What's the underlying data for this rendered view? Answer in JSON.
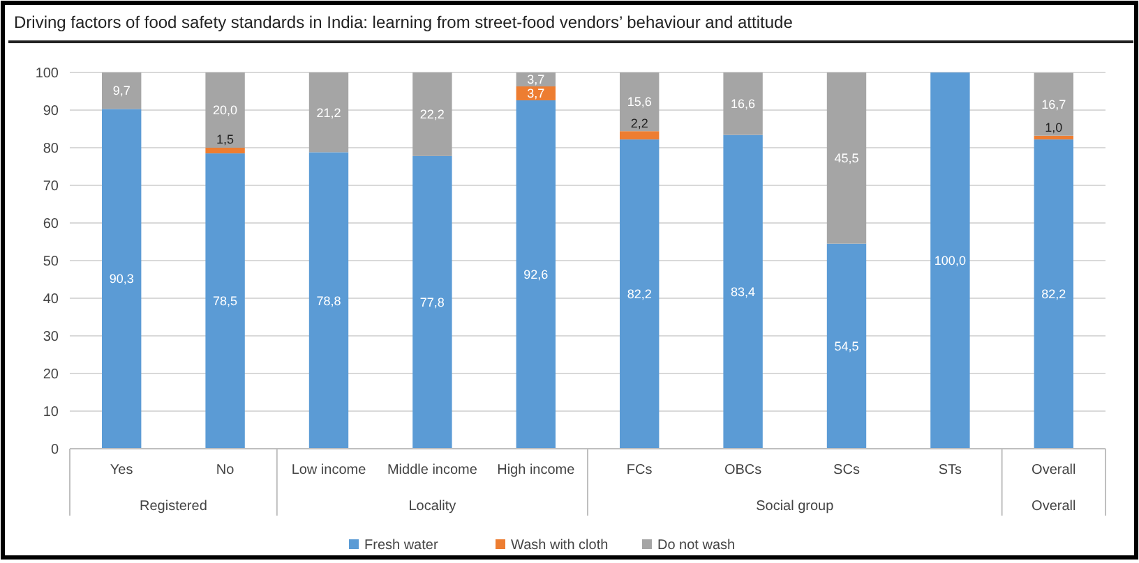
{
  "chart_data": {
    "type": "bar",
    "title": "Driving factors of food safety standards in India: learning from street-food vendors’ behaviour and attitude",
    "categories": [
      "Yes",
      "No",
      "Low income",
      "Middle income",
      "High income",
      "FCs",
      "OBCs",
      "SCs",
      "STs",
      "Overall"
    ],
    "annotations": [
      "Registered",
      "Locality",
      "Social group",
      "Overall"
    ],
    "stacked": true,
    "series": [
      {
        "name": "Fresh water",
        "color": "#5b9bd5",
        "values": [
          90.3,
          78.5,
          78.8,
          77.8,
          92.6,
          82.2,
          83.4,
          54.5,
          100.0,
          82.2
        ],
        "value_labels": [
          "90,3",
          "78,5",
          "78,8",
          "77,8",
          "92,6",
          "82,2",
          "83,4",
          "54,5",
          "100,0",
          "82,2"
        ]
      },
      {
        "name": "Wash with cloth",
        "color": "#ed7d31",
        "values": [
          0,
          1.5,
          0,
          0,
          3.7,
          2.2,
          0,
          0,
          0,
          1.0
        ],
        "value_labels": [
          null,
          "1,5",
          null,
          null,
          "3,7",
          "2,2",
          null,
          null,
          null,
          "1,0"
        ]
      },
      {
        "name": "Do not wash",
        "color": "#a5a5a5",
        "values": [
          9.7,
          20.0,
          21.2,
          22.2,
          3.7,
          15.6,
          16.6,
          45.5,
          0,
          16.7
        ],
        "value_labels": [
          "9,7",
          "20,0",
          "21,2",
          "22,2",
          "3,7",
          "15,6",
          "16,6",
          "45,5",
          null,
          "16,7"
        ]
      }
    ],
    "ylim": [
      0,
      100
    ],
    "yticks": [
      0,
      10,
      20,
      30,
      40,
      50,
      60,
      70,
      80,
      90,
      100
    ],
    "grid": "y",
    "legend": "bottom"
  }
}
